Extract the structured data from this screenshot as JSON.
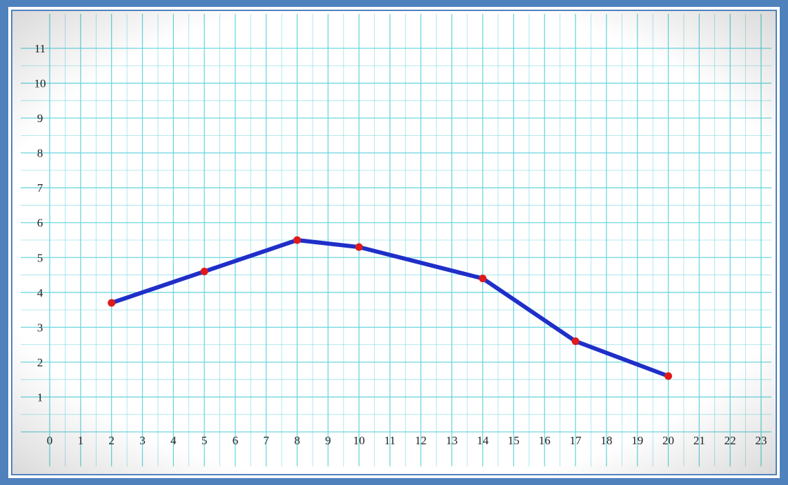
{
  "colors": {
    "frame": "#4f81bd",
    "grid": "#66d4dd",
    "line": "#1f2fc8",
    "marker": "#e01a1a",
    "plot_bg": "#ffffff"
  },
  "chart_data": {
    "type": "line",
    "title": "",
    "xlabel": "",
    "ylabel": "",
    "xlim": [
      0,
      23
    ],
    "ylim": [
      0,
      11
    ],
    "grid": true,
    "x_ticks": [
      "0",
      "1",
      "2",
      "3",
      "4",
      "5",
      "6",
      "7",
      "8",
      "9",
      "10",
      "11",
      "12",
      "13",
      "14",
      "15",
      "16",
      "17",
      "18",
      "19",
      "20",
      "21",
      "22",
      "23"
    ],
    "y_ticks": [
      "1",
      "2",
      "3",
      "4",
      "5",
      "6",
      "7",
      "8",
      "9",
      "10",
      "11"
    ],
    "series": [
      {
        "x": [
          2,
          5,
          8,
          10,
          14,
          17,
          20
        ],
        "y": [
          3.7,
          4.6,
          5.5,
          5.3,
          4.4,
          2.6,
          1.6
        ]
      }
    ]
  }
}
